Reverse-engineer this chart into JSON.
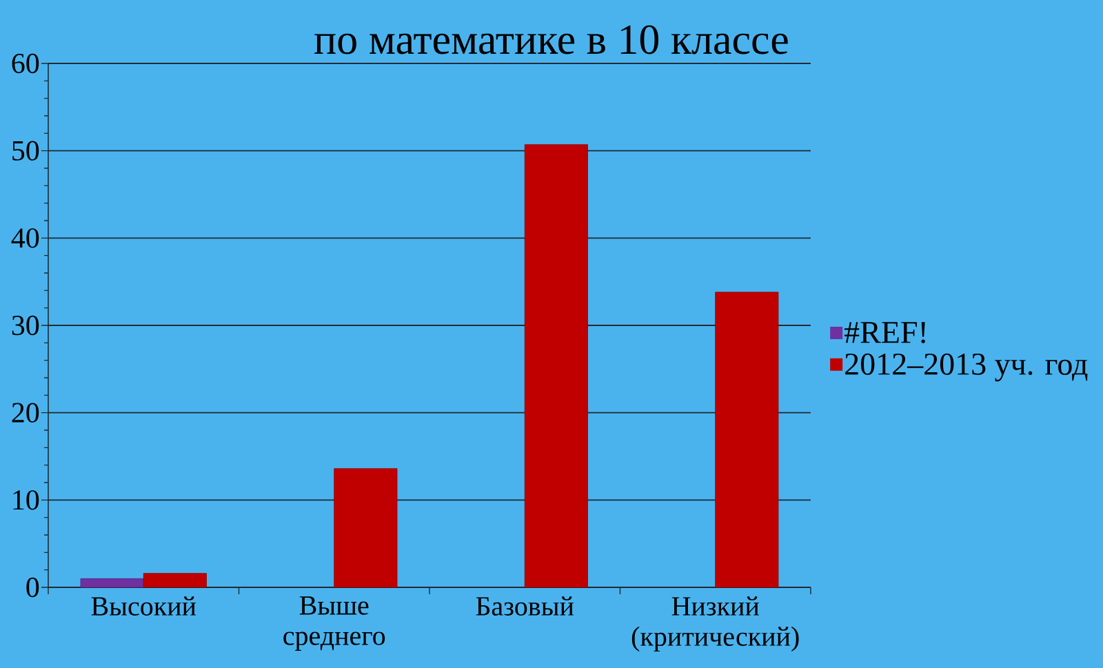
{
  "chart_data": {
    "type": "bar",
    "title": "по математике в 10 классе",
    "categories": [
      "Высокий",
      "Выше среднего",
      "Базовый",
      "Низкий (критический)"
    ],
    "series": [
      {
        "name": "#REF!",
        "color": "#7030a0",
        "values": [
          1,
          null,
          null,
          null
        ]
      },
      {
        "name": "2012–2013 уч. год",
        "color": "#c00000",
        "values": [
          1.6,
          13.6,
          50.7,
          33.8
        ]
      }
    ],
    "ylim": [
      0,
      60
    ],
    "yticks": [
      0,
      {
        "value": 2,
        "label": null
      },
      {
        "value": 4,
        "label": null
      },
      {
        "value": 6,
        "label": null
      },
      {
        "value": 8,
        "label": null
      },
      10,
      {
        "value": 12,
        "label": null
      },
      {
        "value": 14,
        "label": null
      },
      {
        "value": 16,
        "label": null
      },
      {
        "value": 18,
        "label": null
      },
      20,
      {
        "value": 22,
        "label": null
      },
      {
        "value": 24,
        "label": null
      },
      {
        "value": 26,
        "label": null
      },
      {
        "value": 28,
        "label": null
      },
      30,
      {
        "value": 32,
        "label": null
      },
      {
        "value": 34,
        "label": null
      },
      {
        "value": 36,
        "label": null
      },
      {
        "value": 38,
        "label": null
      },
      40,
      {
        "value": 42,
        "label": null
      },
      {
        "value": 44,
        "label": null
      },
      {
        "value": 46,
        "label": null
      },
      {
        "value": 48,
        "label": null
      },
      50,
      {
        "value": 52,
        "label": null
      },
      {
        "value": 54,
        "label": null
      },
      {
        "value": 56,
        "label": null
      },
      {
        "value": 58,
        "label": null
      },
      60
    ],
    "grid": "y",
    "legend": "right"
  }
}
